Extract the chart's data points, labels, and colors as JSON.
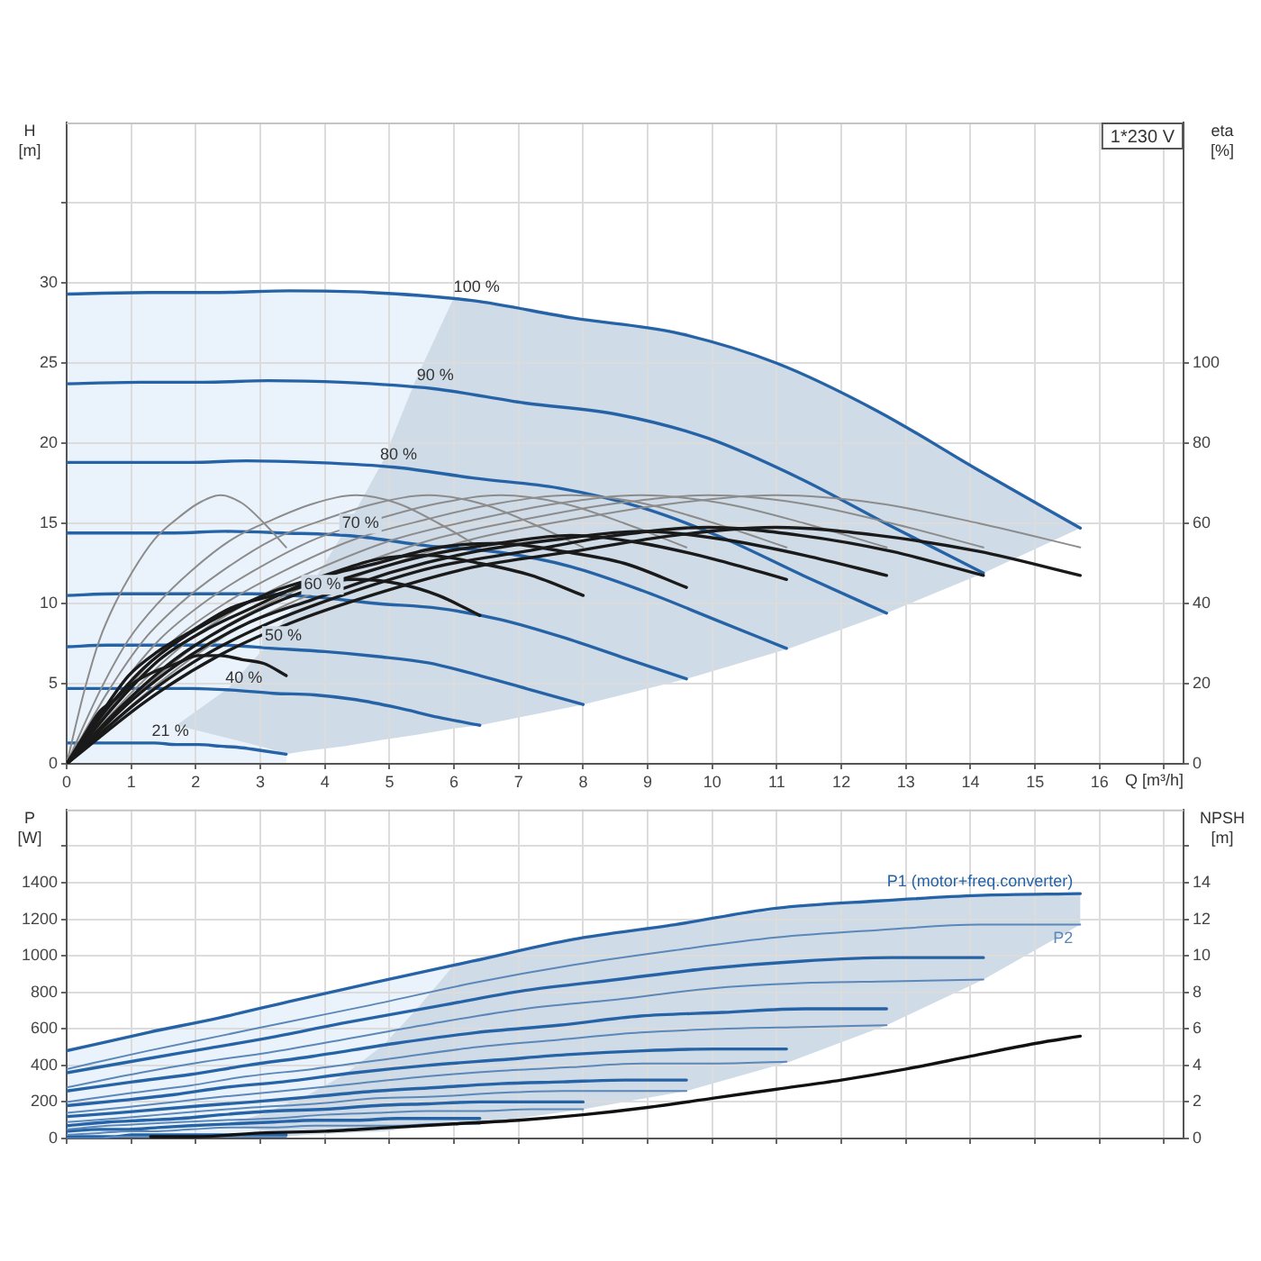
{
  "chart_data": [
    {
      "type": "line",
      "xlabel": "Q [m³/h]",
      "ylabel": "H [m]",
      "y2label": "eta [%]",
      "annotations": [
        "1*230 V"
      ],
      "xlim": [
        0,
        17.3
      ],
      "xticks": [
        0,
        1,
        2,
        3,
        4,
        5,
        6,
        7,
        8,
        9,
        10,
        11,
        12,
        13,
        14,
        15,
        16,
        {
          "value": 17,
          "label": null
        }
      ],
      "ylim": [
        0,
        40
      ],
      "yticks": [
        0,
        5,
        10,
        15,
        20,
        25,
        30,
        {
          "value": 35,
          "label": null
        }
      ],
      "y2lim": [
        0,
        160
      ],
      "y2ticks": [
        0,
        20,
        40,
        60,
        80,
        100
      ],
      "grid": true,
      "series": [
        {
          "color": "#eaf3fc",
          "x": [
            0,
            1.3,
            2.4,
            3.4,
            3.5,
            3.7,
            4.3,
            4.9,
            5.4,
            6
          ],
          "values": [
            null,
            null,
            null,
            null,
            null,
            null,
            null,
            null,
            null,
            null
          ],
          "upper": [
            29.3,
            29.4,
            29.4,
            29.5,
            29.5,
            29.5,
            29.5,
            29.4,
            29.3,
            29.1
          ],
          "lower": [
            0,
            0,
            0,
            0,
            9.7,
            10.6,
            14.5,
            18.9,
            23.9,
            29.1
          ]
        },
        {
          "color": "#cfdbe7",
          "x": [
            1.7,
            2.5,
            3.1,
            3.4,
            3.7,
            4.3,
            4.9,
            5.4,
            6,
            6.4,
            8,
            9.6,
            11.2,
            12.7,
            14.2,
            15.7
          ],
          "values": [
            null,
            null,
            null,
            null,
            null,
            null,
            null,
            null,
            null,
            null,
            null,
            null,
            null,
            null,
            null,
            null
          ],
          "upper": [
            2.4,
            4.7,
            7.4,
            9.2,
            10.6,
            14.5,
            18.9,
            23.9,
            29.1,
            28.9,
            27.7,
            26.9,
            24.7,
            21.7,
            18.1,
            14.7
          ],
          "lower": [
            2.4,
            1.6,
            1,
            0.6,
            0.8,
            1.1,
            1.5,
            1.8,
            2.2,
            2.4,
            3.7,
            5.3,
            7.2,
            9.4,
            11.9,
            14.7
          ]
        },
        {
          "name": "100 %",
          "color": "#2563a6",
          "x": [
            0,
            1.26,
            2.36,
            3.45,
            4.71,
            6.28,
            7.85,
            9.42,
            10.99,
            12.56,
            14.13,
            15.7
          ],
          "values": [
            29.3,
            29.4,
            29.4,
            29.5,
            29.4,
            28.9,
            27.8,
            26.9,
            25,
            22,
            18.3,
            14.7
          ]
        },
        {
          "name": "90 %",
          "color": "#2563a6",
          "x": [
            0,
            1.14,
            2.13,
            3.12,
            4.26,
            5.68,
            7.1,
            8.52,
            9.94,
            11.36,
            12.78,
            14.2
          ],
          "values": [
            23.7,
            23.8,
            23.8,
            23.9,
            23.8,
            23.4,
            22.5,
            21.8,
            20.3,
            17.8,
            14.8,
            11.9
          ]
        },
        {
          "name": "80 %",
          "color": "#2563a6",
          "x": [
            0,
            1.02,
            1.91,
            2.79,
            3.81,
            5.08,
            6.35,
            7.62,
            8.89,
            10.16,
            11.43,
            12.7
          ],
          "values": [
            18.8,
            18.8,
            18.8,
            18.9,
            18.8,
            18.5,
            17.8,
            17.2,
            16,
            14.1,
            11.7,
            9.4
          ]
        },
        {
          "name": "70 %",
          "color": "#2563a6",
          "x": [
            0,
            0.89,
            1.67,
            2.45,
            3.35,
            4.46,
            5.58,
            6.69,
            7.81,
            8.92,
            10.04,
            11.15
          ],
          "values": [
            14.4,
            14.4,
            14.4,
            14.5,
            14.4,
            14.2,
            13.6,
            13.2,
            12.3,
            10.8,
            9,
            7.2
          ]
        },
        {
          "name": "60 %",
          "color": "#2563a6",
          "x": [
            0,
            0.77,
            1.44,
            2.11,
            2.88,
            3.84,
            4.8,
            5.76,
            6.72,
            7.68,
            8.64,
            9.6
          ],
          "values": [
            10.5,
            10.6,
            10.6,
            10.6,
            10.6,
            10.4,
            10,
            9.7,
            9,
            7.9,
            6.6,
            5.3
          ]
        },
        {
          "name": "50 %",
          "color": "#2563a6",
          "x": [
            0,
            0.64,
            1.2,
            1.76,
            2.4,
            3.2,
            4,
            4.8,
            5.6,
            6.4,
            7.2,
            8
          ],
          "values": [
            7.3,
            7.4,
            7.4,
            7.4,
            7.4,
            7.2,
            7,
            6.7,
            6.3,
            5.5,
            4.6,
            3.7
          ]
        },
        {
          "name": "40 %",
          "color": "#2563a6",
          "x": [
            0,
            0.51,
            0.96,
            1.41,
            1.92,
            2.56,
            3.2,
            3.84,
            4.48,
            5.12,
            5.76,
            6.4
          ],
          "values": [
            4.7,
            4.7,
            4.7,
            4.7,
            4.7,
            4.6,
            4.4,
            4.3,
            4,
            3.5,
            2.9,
            2.4
          ]
        },
        {
          "name": "21 %",
          "color": "#2563a6",
          "x": [
            0,
            0.27,
            0.51,
            0.75,
            1.02,
            1.36,
            1.7,
            2.04,
            2.38,
            2.72,
            3.06,
            3.4
          ],
          "values": [
            1.3,
            1.3,
            1.3,
            1.3,
            1.3,
            1.3,
            1.2,
            1.2,
            1.1,
            1,
            0.8,
            0.6
          ]
        },
        {
          "color": "#8c8c8c",
          "axis": "y2",
          "x": [
            0,
            1.26,
            2.36,
            3.45,
            4.71,
            6.28,
            7.85,
            9.42,
            10.99,
            12.56,
            14.13,
            15.7
          ],
          "values": [
            0,
            18,
            31,
            40,
            48,
            56,
            61,
            65,
            67,
            65,
            60,
            54
          ]
        },
        {
          "color": "#8c8c8c",
          "axis": "y2",
          "x": [
            0,
            1.14,
            2.13,
            3.12,
            4.26,
            5.68,
            7.1,
            8.52,
            9.94,
            11.36,
            12.78,
            14.2
          ],
          "values": [
            0,
            18,
            31,
            40,
            48,
            56,
            61,
            65,
            67,
            65,
            60,
            54
          ]
        },
        {
          "color": "#8c8c8c",
          "axis": "y2",
          "x": [
            0,
            1.02,
            1.91,
            2.79,
            3.81,
            5.08,
            6.35,
            7.62,
            8.89,
            10.16,
            11.43,
            12.7
          ],
          "values": [
            0,
            18,
            31,
            40,
            48,
            56,
            61,
            65,
            67,
            65,
            60,
            54
          ]
        },
        {
          "color": "#8c8c8c",
          "axis": "y2",
          "x": [
            0,
            0.89,
            1.67,
            2.45,
            3.35,
            4.46,
            5.58,
            6.69,
            7.81,
            8.92,
            10.04,
            11.15
          ],
          "values": [
            0,
            18,
            31,
            40,
            48,
            56,
            61,
            65,
            67,
            65,
            60,
            54
          ]
        },
        {
          "color": "#8c8c8c",
          "axis": "y2",
          "x": [
            0,
            0.77,
            1.44,
            2.11,
            2.88,
            3.84,
            4.8,
            5.76,
            6.72,
            7.68,
            8.64,
            9.6
          ],
          "values": [
            0,
            18,
            31,
            40,
            48,
            56,
            61,
            65,
            67,
            65,
            60,
            54
          ]
        },
        {
          "color": "#8c8c8c",
          "axis": "y2",
          "x": [
            0,
            0.64,
            1.2,
            1.76,
            2.4,
            3.2,
            4,
            4.8,
            5.6,
            6.4,
            7.2,
            8
          ],
          "values": [
            0,
            18,
            31,
            40,
            48,
            56,
            61,
            65,
            67,
            65,
            60,
            54
          ]
        },
        {
          "color": "#8c8c8c",
          "axis": "y2",
          "x": [
            0,
            0.51,
            0.96,
            1.41,
            1.92,
            2.56,
            3.2,
            3.84,
            4.48,
            5.12,
            5.76,
            6.4
          ],
          "values": [
            0,
            18,
            31,
            40,
            48,
            56,
            61,
            65,
            67,
            65,
            60,
            54
          ]
        },
        {
          "color": "#8c8c8c",
          "axis": "y2",
          "x": [
            0,
            0.27,
            0.51,
            0.75,
            1.02,
            1.36,
            1.7,
            2.04,
            2.38,
            2.72,
            3.06,
            3.4
          ],
          "values": [
            0,
            18,
            31,
            40,
            48,
            56,
            61,
            65,
            67,
            65,
            60,
            54
          ]
        },
        {
          "color": "#1a1a1a",
          "axis": "y2",
          "x": [
            0,
            1.26,
            2.36,
            3.45,
            4.71,
            6.28,
            7.85,
            9.42,
            10.99,
            12.56,
            14.13,
            15.7
          ],
          "values": [
            0,
            16,
            27,
            35,
            42,
            49,
            53,
            57,
            59,
            57,
            53,
            47
          ]
        },
        {
          "color": "#1a1a1a",
          "axis": "y2",
          "x": [
            0,
            1.14,
            2.13,
            3.12,
            4.26,
            5.68,
            7.1,
            8.52,
            9.94,
            11.36,
            12.78,
            14.2
          ],
          "values": [
            0,
            16,
            27,
            35,
            42,
            49,
            53,
            57,
            59,
            57,
            53,
            47
          ]
        },
        {
          "color": "#1a1a1a",
          "axis": "y2",
          "x": [
            0,
            1.02,
            1.91,
            2.79,
            3.81,
            5.08,
            6.35,
            7.62,
            8.89,
            10.16,
            11.43,
            12.7
          ],
          "values": [
            0,
            16,
            27,
            35,
            41,
            48,
            53,
            56,
            58,
            56,
            52,
            47
          ]
        },
        {
          "color": "#1a1a1a",
          "axis": "y2",
          "x": [
            0,
            0.89,
            1.67,
            2.45,
            3.35,
            4.46,
            5.58,
            6.69,
            7.81,
            8.92,
            10.04,
            11.15
          ],
          "values": [
            0,
            15,
            26,
            34,
            41,
            47,
            52,
            55,
            57,
            55,
            51,
            46
          ]
        },
        {
          "color": "#1a1a1a",
          "axis": "y2",
          "x": [
            0,
            0.77,
            1.44,
            2.11,
            2.88,
            3.84,
            4.8,
            5.76,
            6.72,
            7.68,
            8.64,
            9.6
          ],
          "values": [
            0,
            15,
            26,
            33,
            39,
            46,
            50,
            54,
            55,
            53,
            50,
            44
          ]
        },
        {
          "color": "#1a1a1a",
          "axis": "y2",
          "x": [
            0,
            0.64,
            1.2,
            1.76,
            2.4,
            3.2,
            4,
            4.8,
            5.6,
            6.4,
            7.2,
            8
          ],
          "values": [
            0,
            14,
            24,
            31,
            37,
            43,
            47,
            51,
            52,
            50,
            47,
            42
          ]
        },
        {
          "color": "#1a1a1a",
          "axis": "y2",
          "x": [
            0,
            0.51,
            0.96,
            1.41,
            1.92,
            2.56,
            3.2,
            3.84,
            4.48,
            5.12,
            5.76,
            6.4
          ],
          "values": [
            0,
            12,
            22,
            28,
            33,
            39,
            42,
            45,
            46,
            45,
            42,
            37
          ]
        },
        {
          "color": "#1a1a1a",
          "axis": "y2",
          "x": [
            0,
            0.27,
            0.51,
            0.75,
            1.02,
            1.36,
            1.7,
            2.04,
            2.38,
            2.72,
            3.06,
            3.4
          ],
          "values": [
            0,
            7,
            13,
            16,
            20,
            23,
            25,
            27,
            27,
            26,
            25,
            22
          ]
        }
      ]
    },
    {
      "type": "line",
      "ylabel": "P [W]",
      "y2label": "NPSH [m]",
      "tick_labels": "y",
      "xlim": [
        0,
        17.3
      ],
      "xticks": [
        0,
        1,
        2,
        3,
        4,
        5,
        6,
        7,
        8,
        9,
        10,
        11,
        12,
        13,
        14,
        15,
        16,
        {
          "value": 17,
          "label": null
        }
      ],
      "ylim": [
        0,
        1800
      ],
      "yticks": [
        0,
        200,
        400,
        600,
        800,
        1000,
        1200,
        1400,
        {
          "value": 1600,
          "label": null
        }
      ],
      "y2lim": [
        0,
        18
      ],
      "y2ticks": [
        0,
        2,
        4,
        6,
        8,
        10,
        12,
        14,
        {
          "value": 16,
          "label": null
        }
      ],
      "grid": true,
      "series": [
        {
          "color": "#eaf3fc",
          "x": [
            0,
            1.3,
            2.4,
            3.4,
            3.5,
            3.7,
            4.3,
            4.9,
            5.4,
            6
          ],
          "values": [
            null,
            null,
            null,
            null,
            null,
            null,
            null,
            null,
            null,
            null
          ],
          "upper": [
            480,
            580,
            660,
            740,
            750,
            760,
            810,
            860,
            900,
            950
          ],
          "lower": [
            0,
            0,
            0,
            0,
            200,
            230,
            350,
            510,
            700,
            950
          ]
        },
        {
          "color": "#cfdbe7",
          "x": [
            2.5,
            3.1,
            3.4,
            3.7,
            4.3,
            4.9,
            5.4,
            6,
            6.4,
            8,
            9.6,
            11.2,
            12.7,
            14.2,
            15.7
          ],
          "values": [
            null,
            null,
            null,
            null,
            null,
            null,
            null,
            null,
            null,
            null,
            null,
            null,
            null,
            null,
            null
          ],
          "upper": [
            80,
            140,
            190,
            230,
            350,
            510,
            700,
            950,
            980,
            1100,
            1180,
            1260,
            1310,
            1330,
            1340
          ],
          "lower": [
            80,
            40,
            10,
            20,
            30,
            40,
            60,
            70,
            80,
            160,
            260,
            420,
            620,
            870,
            1170
          ]
        },
        {
          "name": "P1 (motor+freq.converter)",
          "color": "#2563a6",
          "x": [
            0,
            1.26,
            2.36,
            3.45,
            4.71,
            6.28,
            7.85,
            9.42,
            10.99,
            12.56,
            14.13,
            15.7
          ],
          "values": [
            480,
            580,
            660,
            750,
            850,
            970,
            1090,
            1170,
            1260,
            1300,
            1330,
            1340
          ]
        },
        {
          "color": "#2563a6",
          "x": [
            0,
            1.14,
            2.13,
            3.12,
            4.26,
            5.68,
            7.1,
            8.52,
            9.94,
            11.36,
            12.78,
            14.2
          ],
          "values": [
            360,
            430,
            490,
            550,
            630,
            720,
            810,
            870,
            930,
            970,
            990,
            990
          ]
        },
        {
          "color": "#2563a6",
          "x": [
            0,
            1.02,
            1.91,
            2.79,
            3.81,
            5.08,
            6.35,
            7.62,
            8.89,
            10.16,
            11.43,
            12.7
          ],
          "values": [
            260,
            310,
            350,
            400,
            450,
            520,
            580,
            620,
            670,
            690,
            710,
            710
          ]
        },
        {
          "color": "#2563a6",
          "x": [
            0,
            0.89,
            1.67,
            2.45,
            3.35,
            4.46,
            5.58,
            6.69,
            7.81,
            8.92,
            10.04,
            11.15
          ],
          "values": [
            180,
            210,
            240,
            280,
            310,
            360,
            400,
            430,
            460,
            480,
            490,
            490
          ]
        },
        {
          "color": "#2563a6",
          "x": [
            0,
            0.77,
            1.44,
            2.11,
            2.88,
            3.84,
            4.8,
            5.76,
            6.72,
            7.68,
            8.64,
            9.6
          ],
          "values": [
            120,
            140,
            160,
            180,
            200,
            230,
            260,
            280,
            300,
            310,
            320,
            320
          ]
        },
        {
          "color": "#2563a6",
          "x": [
            0,
            0.64,
            1.2,
            1.76,
            2.4,
            3.2,
            4,
            4.8,
            5.6,
            6.4,
            7.2,
            8
          ],
          "values": [
            70,
            90,
            100,
            110,
            130,
            150,
            160,
            180,
            190,
            200,
            200,
            200
          ]
        },
        {
          "color": "#2563a6",
          "x": [
            0,
            0.51,
            0.96,
            1.41,
            1.92,
            2.56,
            3.2,
            3.84,
            4.48,
            5.12,
            5.76,
            6.4
          ],
          "values": [
            40,
            50,
            50,
            60,
            70,
            80,
            90,
            100,
            100,
            110,
            110,
            110
          ]
        },
        {
          "color": "#2563a6",
          "x": [
            0,
            0.27,
            0.51,
            0.75,
            1.02,
            1.36,
            1.7,
            2.04,
            2.38,
            2.72,
            3.06,
            3.4
          ],
          "values": [
            10,
            10,
            10,
            10,
            20,
            20,
            20,
            20,
            20,
            20,
            20,
            20
          ]
        },
        {
          "name": "P2",
          "color": "#5b87b9",
          "x": [
            0,
            1.26,
            2.36,
            3.45,
            4.71,
            6.28,
            7.85,
            9.42,
            10.99,
            12.56,
            14.13,
            15.7
          ],
          "values": [
            380,
            480,
            560,
            640,
            730,
            850,
            950,
            1030,
            1100,
            1140,
            1170,
            1170
          ]
        },
        {
          "color": "#5b87b9",
          "x": [
            0,
            1.14,
            2.13,
            3.12,
            4.26,
            5.68,
            7.1,
            8.52,
            9.94,
            11.36,
            12.78,
            14.2
          ],
          "values": [
            280,
            360,
            420,
            470,
            540,
            630,
            710,
            760,
            820,
            850,
            860,
            870
          ]
        },
        {
          "color": "#5b87b9",
          "x": [
            0,
            1.02,
            1.91,
            2.79,
            3.81,
            5.08,
            6.35,
            7.62,
            8.89,
            10.16,
            11.43,
            12.7
          ],
          "values": [
            200,
            250,
            290,
            340,
            380,
            440,
            500,
            540,
            580,
            600,
            610,
            620
          ]
        },
        {
          "color": "#5b87b9",
          "x": [
            0,
            0.89,
            1.67,
            2.45,
            3.35,
            4.46,
            5.58,
            6.69,
            7.81,
            8.92,
            10.04,
            11.15
          ],
          "values": [
            140,
            170,
            200,
            230,
            260,
            300,
            340,
            370,
            390,
            410,
            410,
            420
          ]
        },
        {
          "color": "#5b87b9",
          "x": [
            0,
            0.77,
            1.44,
            2.11,
            2.88,
            3.84,
            4.8,
            5.76,
            6.72,
            7.68,
            8.64,
            9.6
          ],
          "values": [
            90,
            110,
            130,
            150,
            170,
            190,
            220,
            230,
            250,
            260,
            260,
            260
          ]
        },
        {
          "color": "#5b87b9",
          "x": [
            0,
            0.64,
            1.2,
            1.76,
            2.4,
            3.2,
            4,
            4.8,
            5.6,
            6.4,
            7.2,
            8
          ],
          "values": [
            50,
            70,
            80,
            90,
            100,
            110,
            130,
            140,
            150,
            150,
            160,
            160
          ]
        },
        {
          "color": "#5b87b9",
          "x": [
            0,
            0.51,
            0.96,
            1.41,
            1.92,
            2.56,
            3.2,
            3.84,
            4.48,
            5.12,
            5.76,
            6.4
          ],
          "values": [
            20,
            30,
            40,
            40,
            50,
            60,
            60,
            70,
            70,
            70,
            80,
            80
          ]
        },
        {
          "color": "#5b87b9",
          "x": [
            0,
            0.27,
            0.51,
            0.75,
            1.02,
            1.36,
            1.7,
            2.04,
            2.38,
            2.72,
            3.06,
            3.4
          ],
          "values": [
            0,
            0,
            0,
            10,
            10,
            10,
            10,
            10,
            10,
            10,
            10,
            10
          ]
        },
        {
          "color": "#111111",
          "axis": "y2",
          "x": [
            1.3,
            2,
            3,
            4,
            5,
            6,
            7,
            8,
            9,
            10,
            11,
            12,
            13,
            14,
            15,
            15.7
          ],
          "values": [
            0.1,
            0.1,
            0.3,
            0.4,
            0.6,
            0.8,
            1,
            1.3,
            1.7,
            2.2,
            2.7,
            3.2,
            3.8,
            4.5,
            5.2,
            5.6
          ]
        }
      ]
    }
  ]
}
